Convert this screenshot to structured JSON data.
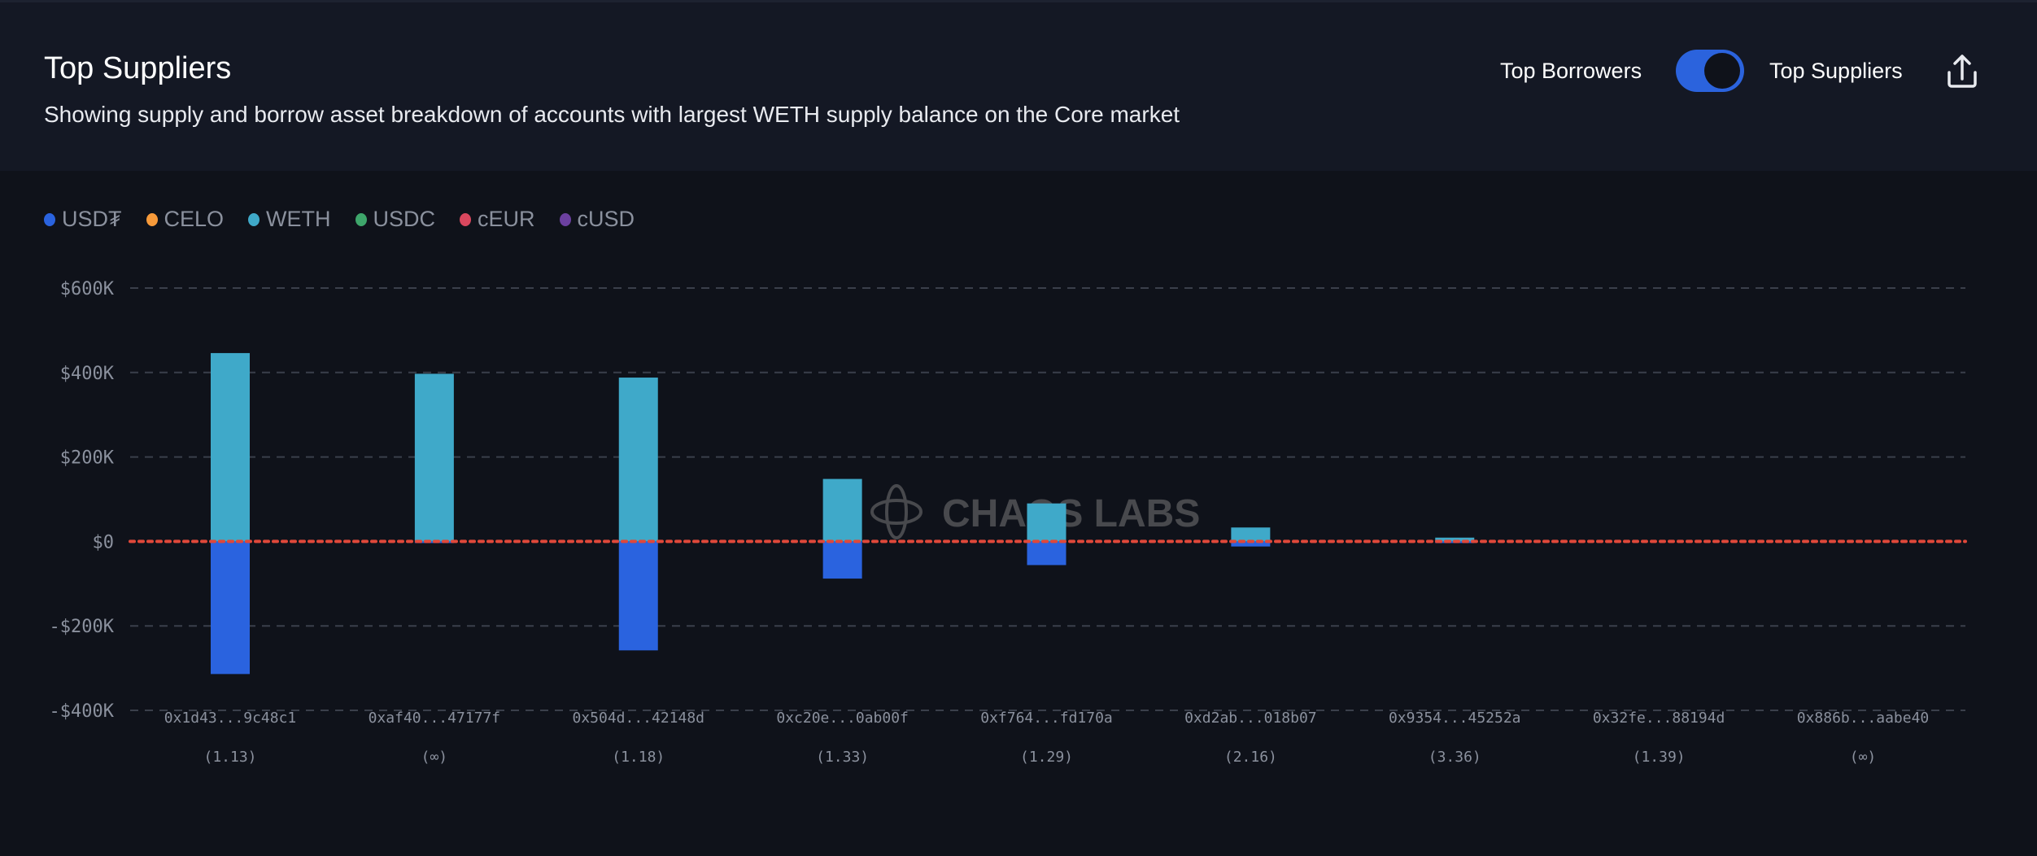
{
  "header": {
    "title": "Top Suppliers",
    "subtitle": "Showing supply and borrow asset breakdown of accounts with largest WETH supply balance on the Core market",
    "toggle_left_label": "Top Borrowers",
    "toggle_right_label": "Top Suppliers",
    "toggle_state": "Top Suppliers",
    "share_icon": "share-icon"
  },
  "watermark": "CHAOS LABS",
  "chart_data": {
    "type": "bar",
    "stacked": true,
    "title": "Top Suppliers",
    "legend": [
      {
        "name": "USD₮",
        "color": "#2a63df"
      },
      {
        "name": "CELO",
        "color": "#f79a3a"
      },
      {
        "name": "WETH",
        "color": "#3fa9c9"
      },
      {
        "name": "USDC",
        "color": "#3ea66b"
      },
      {
        "name": "cEUR",
        "color": "#d9475e"
      },
      {
        "name": "cUSD",
        "color": "#6c40a0"
      }
    ],
    "legend_placement": "top-left",
    "categories": [
      "0x1d43...9c48c1",
      "0xaf40...47177f",
      "0x504d...42148d",
      "0xc20e...0ab00f",
      "0xf764...fd170a",
      "0xd2ab...018b07",
      "0x9354...45252a",
      "0x32fe...88194d",
      "0x886b...aabe40"
    ],
    "health_factors": [
      "(1.13)",
      "(∞)",
      "(1.18)",
      "(1.33)",
      "(1.29)",
      "(2.16)",
      "(3.36)",
      "(1.39)",
      "(∞)"
    ],
    "series": [
      {
        "name": "WETH",
        "color": "#3fa9c9",
        "values": [
          446000,
          397000,
          388000,
          148000,
          90000,
          33000,
          9000,
          0,
          0
        ]
      },
      {
        "name": "USD₮",
        "color": "#2a63df",
        "values": [
          -314000,
          -2000,
          -258000,
          -88000,
          -56000,
          -12000,
          -2000,
          0,
          0
        ]
      }
    ],
    "yticks": [
      600000,
      400000,
      200000,
      0,
      -200000,
      -400000
    ],
    "ytick_labels": [
      "$600K",
      "$400K",
      "$200K",
      "$0",
      "-$200K",
      "-$400K"
    ],
    "ylim": [
      -400000,
      600000
    ],
    "grid": true,
    "zero_line_color": "#e0483a"
  }
}
